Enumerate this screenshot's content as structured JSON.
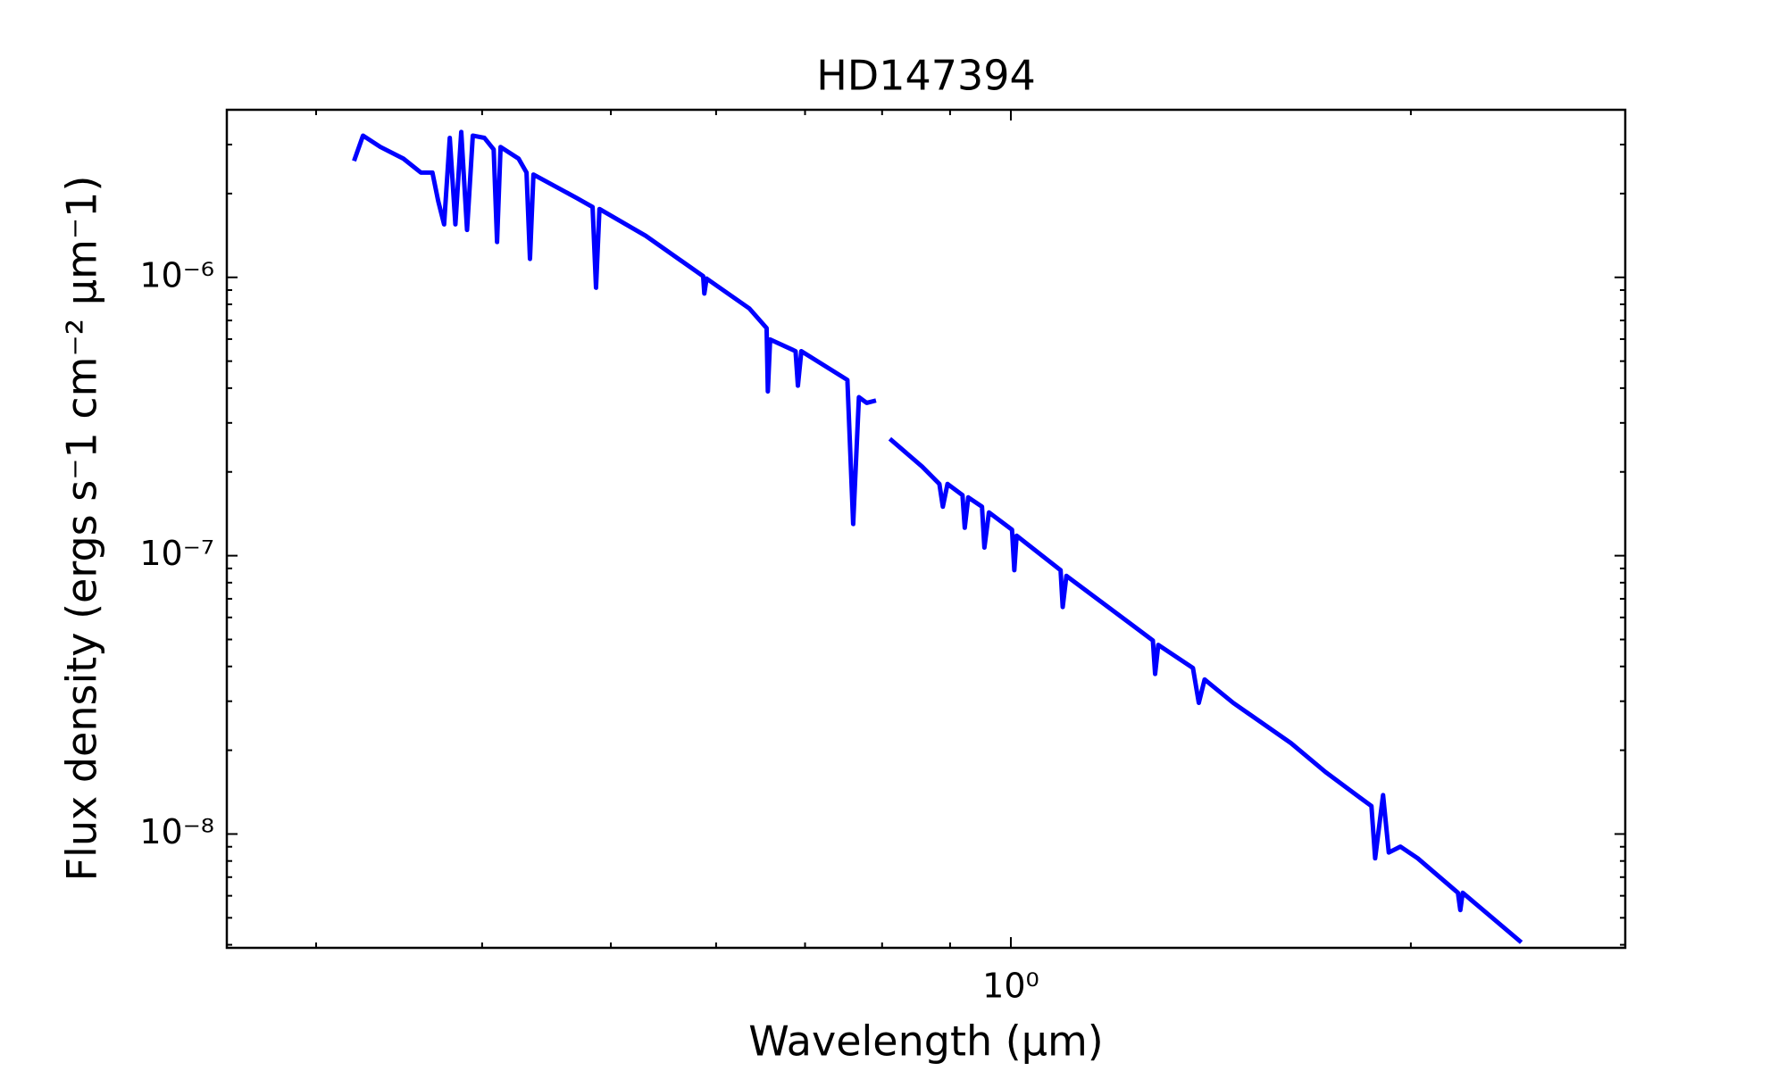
{
  "chart_data": {
    "type": "line",
    "title": "HD147394",
    "x_label": "Wavelength (μm)",
    "y_label": "Flux density (ergs s⁻1 cm⁻² μm⁻1)",
    "xscale": "log",
    "yscale": "log",
    "xlim": [
      0.257,
      2.9
    ],
    "ylim": [
      3.9e-09,
      4e-06
    ],
    "xticks": [
      {
        "value": 1,
        "label": "10⁰"
      }
    ],
    "yticks": [
      {
        "value": 1e-08,
        "label": "10⁻⁸"
      },
      {
        "value": 1e-07,
        "label": "10⁻⁷"
      },
      {
        "value": 1e-06,
        "label": "10⁻⁶"
      }
    ],
    "x": [
      0.3204,
      0.3254,
      0.3354,
      0.349,
      0.3597,
      0.367,
      0.3707,
      0.3745,
      0.3782,
      0.3819,
      0.3858,
      0.3897,
      0.3936,
      0.4016,
      0.4081,
      0.4105,
      0.413,
      0.4261,
      0.432,
      0.4346,
      0.4372,
      0.471,
      0.4844,
      0.4873,
      0.4902,
      0.5311,
      0.5867,
      0.5879,
      0.5902,
      0.6356,
      0.6549,
      0.6563,
      0.6589,
      0.6886,
      0.6914,
      0.6955,
      0.7533,
      0.7609,
      0.7685,
      0.7789,
      0.7916,
      null,
      0.8108,
      0.8574,
      0.8835,
      0.8888,
      0.896,
      0.9196,
      0.9232,
      0.9288,
      0.9512,
      0.9552,
      0.9627,
      1.002,
      1.006,
      1.01,
      1.09,
      1.094,
      1.101,
      1.279,
      1.284,
      1.291,
      1.371,
      1.385,
      1.399,
      1.47,
      1.625,
      1.725,
      1.795,
      1.868,
      1.88,
      1.906,
      1.925,
      1.964,
      2.024,
      2.17,
      2.179,
      2.188,
      2.422
    ],
    "series": [
      {
        "color": "#0000ff",
        "values": [
          2.62e-06,
          3.23e-06,
          2.94e-06,
          2.67e-06,
          2.38e-06,
          2.38e-06,
          1.88e-06,
          1.55e-06,
          3.17e-06,
          1.55e-06,
          3.33e-06,
          1.48e-06,
          3.23e-06,
          3.17e-06,
          2.88e-06,
          1.34e-06,
          2.94e-06,
          2.67e-06,
          2.38e-06,
          1.165e-06,
          2.34e-06,
          1.93e-06,
          1.79e-06,
          9.18e-07,
          1.76e-06,
          1.41e-06,
          1.01e-06,
          8.75e-07,
          9.9e-07,
          7.73e-07,
          6.57e-07,
          3.89e-07,
          5.98e-07,
          5.43e-07,
          4.08e-07,
          5.43e-07,
          4.28e-07,
          1.3e-07,
          3.71e-07,
          3.54e-07,
          3.61e-07,
          null,
          2.63e-07,
          2.09e-07,
          1.81e-07,
          1.5e-07,
          1.81e-07,
          1.65e-07,
          1.26e-07,
          1.62e-07,
          1.5e-07,
          1.07e-07,
          1.43e-07,
          1.24e-07,
          8.87e-08,
          1.18e-07,
          8.87e-08,
          6.54e-08,
          8.46e-08,
          4.96e-08,
          3.76e-08,
          4.78e-08,
          3.95e-08,
          2.96e-08,
          3.59e-08,
          2.96e-08,
          2.12e-08,
          1.67e-08,
          1.45e-08,
          1.26e-08,
          8.18e-09,
          1.38e-08,
          8.58e-09,
          9.01e-09,
          8.18e-09,
          6.15e-09,
          5.33e-09,
          6.15e-09,
          4.08e-09
        ]
      }
    ]
  }
}
